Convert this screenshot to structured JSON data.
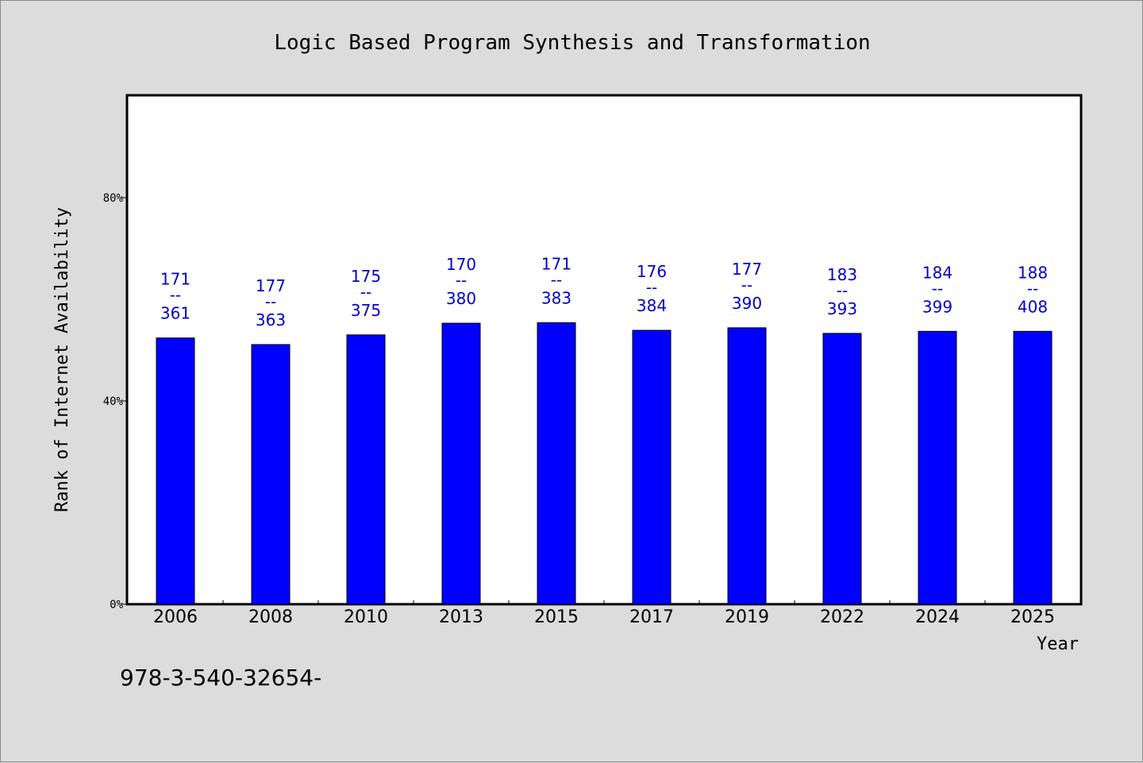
{
  "chart_data": {
    "type": "bar",
    "title": "Logic Based Program Synthesis and Transformation",
    "xlabel": "Year",
    "ylabel": "Rank of Internet Availability",
    "ylim": [
      0,
      100
    ],
    "y_ticks": [
      0,
      40,
      80
    ],
    "y_tick_labels": [
      "0%",
      "40%",
      "80%"
    ],
    "grid": false,
    "categories": [
      "2006",
      "2008",
      "2010",
      "2013",
      "2015",
      "2017",
      "2019",
      "2022",
      "2024",
      "2025"
    ],
    "values": [
      52.4,
      51.1,
      53.0,
      55.3,
      55.4,
      53.9,
      54.4,
      53.3,
      53.7,
      53.7
    ],
    "labels_top": [
      "171",
      "177",
      "175",
      "170",
      "171",
      "176",
      "177",
      "183",
      "184",
      "188"
    ],
    "labels_bottom": [
      "361",
      "363",
      "375",
      "380",
      "383",
      "384",
      "390",
      "393",
      "399",
      "408"
    ],
    "label_separator": "--",
    "bar_color": "#0000ff",
    "label_color": "#0000cc"
  },
  "footer_text": "978-3-540-32654-"
}
